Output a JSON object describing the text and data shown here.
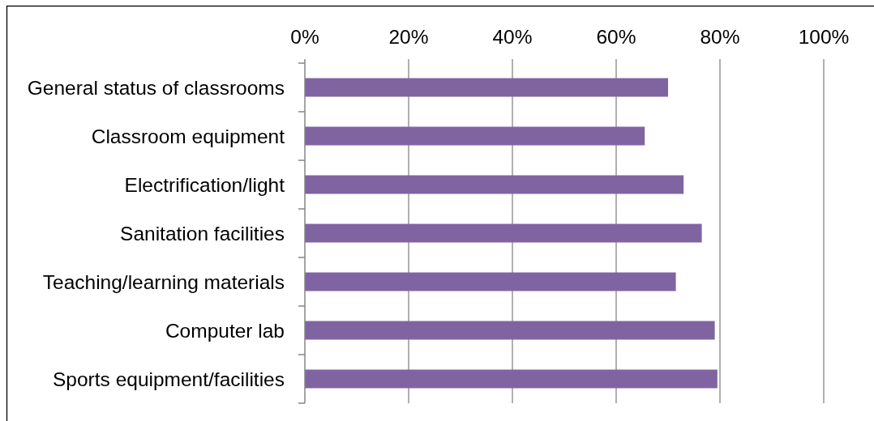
{
  "chart_data": {
    "type": "bar",
    "orientation": "horizontal",
    "categories": [
      "General status of classrooms",
      "Classroom equipment",
      "Electrification/light",
      "Sanitation facilities",
      "Teaching/learning materials",
      "Computer lab",
      "Sports equipment/facilities"
    ],
    "values": [
      70,
      65.5,
      73,
      76.5,
      71.5,
      79,
      79.5
    ],
    "color": "#8064a2",
    "xlim": [
      0,
      100
    ],
    "xticks": [
      {
        "value": 0,
        "label": "0%"
      },
      {
        "value": 20,
        "label": "20%"
      },
      {
        "value": 40,
        "label": "40%"
      },
      {
        "value": 60,
        "label": "60%"
      },
      {
        "value": 80,
        "label": "80%"
      },
      {
        "value": 100,
        "label": "100%"
      }
    ],
    "grid": "x"
  }
}
